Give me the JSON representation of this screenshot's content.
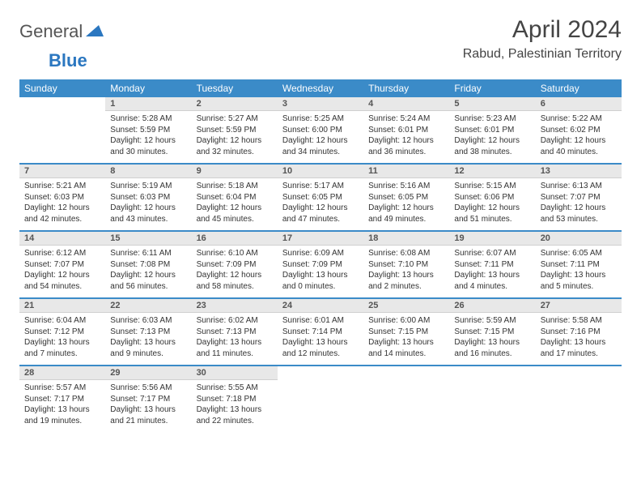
{
  "brand": {
    "word1": "General",
    "word2": "Blue",
    "text_color": "#555555",
    "accent_color": "#2b77c0"
  },
  "title": "April 2024",
  "location": "Rabud, Palestinian Territory",
  "styling": {
    "header_bg": "#3b8bc8",
    "header_text": "#ffffff",
    "day_header_bg": "#e8e8e8",
    "day_header_text": "#555555",
    "separator_color": "#3b8bc8",
    "body_text_color": "#333333",
    "page_bg": "#ffffff",
    "month_title_fontsize": 30,
    "location_fontsize": 16,
    "weekday_fontsize": 12,
    "daynum_fontsize": 11,
    "body_fontsize": 10
  },
  "weekdays": [
    "Sunday",
    "Monday",
    "Tuesday",
    "Wednesday",
    "Thursday",
    "Friday",
    "Saturday"
  ],
  "weeks": [
    [
      null,
      {
        "n": "1",
        "sr": "Sunrise: 5:28 AM",
        "ss": "Sunset: 5:59 PM",
        "d1": "Daylight: 12 hours",
        "d2": "and 30 minutes."
      },
      {
        "n": "2",
        "sr": "Sunrise: 5:27 AM",
        "ss": "Sunset: 5:59 PM",
        "d1": "Daylight: 12 hours",
        "d2": "and 32 minutes."
      },
      {
        "n": "3",
        "sr": "Sunrise: 5:25 AM",
        "ss": "Sunset: 6:00 PM",
        "d1": "Daylight: 12 hours",
        "d2": "and 34 minutes."
      },
      {
        "n": "4",
        "sr": "Sunrise: 5:24 AM",
        "ss": "Sunset: 6:01 PM",
        "d1": "Daylight: 12 hours",
        "d2": "and 36 minutes."
      },
      {
        "n": "5",
        "sr": "Sunrise: 5:23 AM",
        "ss": "Sunset: 6:01 PM",
        "d1": "Daylight: 12 hours",
        "d2": "and 38 minutes."
      },
      {
        "n": "6",
        "sr": "Sunrise: 5:22 AM",
        "ss": "Sunset: 6:02 PM",
        "d1": "Daylight: 12 hours",
        "d2": "and 40 minutes."
      }
    ],
    [
      {
        "n": "7",
        "sr": "Sunrise: 5:21 AM",
        "ss": "Sunset: 6:03 PM",
        "d1": "Daylight: 12 hours",
        "d2": "and 42 minutes."
      },
      {
        "n": "8",
        "sr": "Sunrise: 5:19 AM",
        "ss": "Sunset: 6:03 PM",
        "d1": "Daylight: 12 hours",
        "d2": "and 43 minutes."
      },
      {
        "n": "9",
        "sr": "Sunrise: 5:18 AM",
        "ss": "Sunset: 6:04 PM",
        "d1": "Daylight: 12 hours",
        "d2": "and 45 minutes."
      },
      {
        "n": "10",
        "sr": "Sunrise: 5:17 AM",
        "ss": "Sunset: 6:05 PM",
        "d1": "Daylight: 12 hours",
        "d2": "and 47 minutes."
      },
      {
        "n": "11",
        "sr": "Sunrise: 5:16 AM",
        "ss": "Sunset: 6:05 PM",
        "d1": "Daylight: 12 hours",
        "d2": "and 49 minutes."
      },
      {
        "n": "12",
        "sr": "Sunrise: 5:15 AM",
        "ss": "Sunset: 6:06 PM",
        "d1": "Daylight: 12 hours",
        "d2": "and 51 minutes."
      },
      {
        "n": "13",
        "sr": "Sunrise: 6:13 AM",
        "ss": "Sunset: 7:07 PM",
        "d1": "Daylight: 12 hours",
        "d2": "and 53 minutes."
      }
    ],
    [
      {
        "n": "14",
        "sr": "Sunrise: 6:12 AM",
        "ss": "Sunset: 7:07 PM",
        "d1": "Daylight: 12 hours",
        "d2": "and 54 minutes."
      },
      {
        "n": "15",
        "sr": "Sunrise: 6:11 AM",
        "ss": "Sunset: 7:08 PM",
        "d1": "Daylight: 12 hours",
        "d2": "and 56 minutes."
      },
      {
        "n": "16",
        "sr": "Sunrise: 6:10 AM",
        "ss": "Sunset: 7:09 PM",
        "d1": "Daylight: 12 hours",
        "d2": "and 58 minutes."
      },
      {
        "n": "17",
        "sr": "Sunrise: 6:09 AM",
        "ss": "Sunset: 7:09 PM",
        "d1": "Daylight: 13 hours",
        "d2": "and 0 minutes."
      },
      {
        "n": "18",
        "sr": "Sunrise: 6:08 AM",
        "ss": "Sunset: 7:10 PM",
        "d1": "Daylight: 13 hours",
        "d2": "and 2 minutes."
      },
      {
        "n": "19",
        "sr": "Sunrise: 6:07 AM",
        "ss": "Sunset: 7:11 PM",
        "d1": "Daylight: 13 hours",
        "d2": "and 4 minutes."
      },
      {
        "n": "20",
        "sr": "Sunrise: 6:05 AM",
        "ss": "Sunset: 7:11 PM",
        "d1": "Daylight: 13 hours",
        "d2": "and 5 minutes."
      }
    ],
    [
      {
        "n": "21",
        "sr": "Sunrise: 6:04 AM",
        "ss": "Sunset: 7:12 PM",
        "d1": "Daylight: 13 hours",
        "d2": "and 7 minutes."
      },
      {
        "n": "22",
        "sr": "Sunrise: 6:03 AM",
        "ss": "Sunset: 7:13 PM",
        "d1": "Daylight: 13 hours",
        "d2": "and 9 minutes."
      },
      {
        "n": "23",
        "sr": "Sunrise: 6:02 AM",
        "ss": "Sunset: 7:13 PM",
        "d1": "Daylight: 13 hours",
        "d2": "and 11 minutes."
      },
      {
        "n": "24",
        "sr": "Sunrise: 6:01 AM",
        "ss": "Sunset: 7:14 PM",
        "d1": "Daylight: 13 hours",
        "d2": "and 12 minutes."
      },
      {
        "n": "25",
        "sr": "Sunrise: 6:00 AM",
        "ss": "Sunset: 7:15 PM",
        "d1": "Daylight: 13 hours",
        "d2": "and 14 minutes."
      },
      {
        "n": "26",
        "sr": "Sunrise: 5:59 AM",
        "ss": "Sunset: 7:15 PM",
        "d1": "Daylight: 13 hours",
        "d2": "and 16 minutes."
      },
      {
        "n": "27",
        "sr": "Sunrise: 5:58 AM",
        "ss": "Sunset: 7:16 PM",
        "d1": "Daylight: 13 hours",
        "d2": "and 17 minutes."
      }
    ],
    [
      {
        "n": "28",
        "sr": "Sunrise: 5:57 AM",
        "ss": "Sunset: 7:17 PM",
        "d1": "Daylight: 13 hours",
        "d2": "and 19 minutes."
      },
      {
        "n": "29",
        "sr": "Sunrise: 5:56 AM",
        "ss": "Sunset: 7:17 PM",
        "d1": "Daylight: 13 hours",
        "d2": "and 21 minutes."
      },
      {
        "n": "30",
        "sr": "Sunrise: 5:55 AM",
        "ss": "Sunset: 7:18 PM",
        "d1": "Daylight: 13 hours",
        "d2": "and 22 minutes."
      },
      null,
      null,
      null,
      null
    ]
  ]
}
